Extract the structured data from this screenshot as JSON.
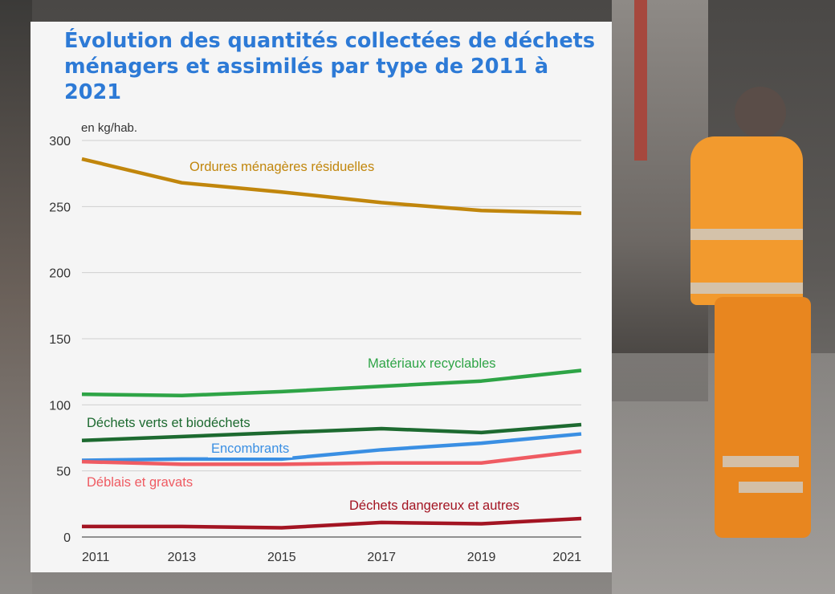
{
  "background": {
    "description_icon": "garbage-collector-photo-icon"
  },
  "chart_data": {
    "type": "line",
    "title": "Évolution des quantités collectées de déchets ménagers et assimilés par type de 2011 à 2021",
    "unit_label": "en kg/hab.",
    "xlabel": "",
    "ylabel": "en kg/hab.",
    "x": [
      2011,
      2013,
      2015,
      2017,
      2019,
      2021
    ],
    "x_ticks": [
      "2011",
      "2013",
      "2015",
      "2017",
      "2019",
      "2021"
    ],
    "y_ticks": [
      "0",
      "50",
      "100",
      "150",
      "200",
      "250",
      "300"
    ],
    "ylim": [
      0,
      300
    ],
    "grid": true,
    "series": [
      {
        "name": "Ordures ménagères résiduelles",
        "color": "#c1860c",
        "values": [
          286,
          268,
          261,
          253,
          247,
          245
        ]
      },
      {
        "name": "Matériaux recyclables",
        "color": "#2ea446",
        "values": [
          108,
          107,
          110,
          114,
          118,
          126
        ]
      },
      {
        "name": "Déchets verts et biodéchets",
        "color": "#1d6a30",
        "values": [
          73,
          76,
          79,
          82,
          79,
          85
        ]
      },
      {
        "name": "Encombrants",
        "color": "#3a8fe3",
        "values": [
          58,
          59,
          59,
          66,
          71,
          78
        ]
      },
      {
        "name": "Déblais et gravats",
        "color": "#ef5b62",
        "values": [
          57,
          55,
          55,
          56,
          56,
          65
        ]
      },
      {
        "name": "Déchets dangereux et autres",
        "color": "#a31422",
        "values": [
          8,
          8,
          7,
          11,
          10,
          14
        ]
      }
    ]
  }
}
